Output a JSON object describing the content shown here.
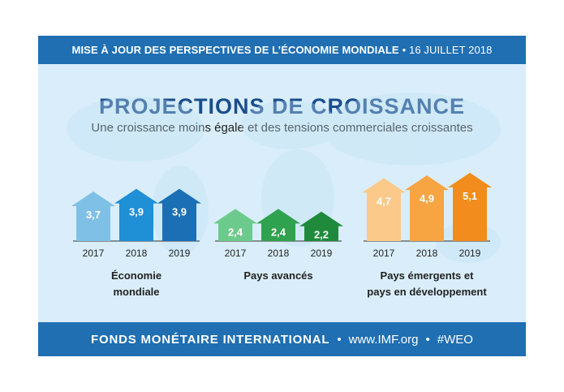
{
  "header": {
    "title": "MISE À JOUR DES PERSPECTIVES DE L’ÉCONOMIE MONDIALE",
    "date": "• 16 JUILLET 2018"
  },
  "main": {
    "title": "PROJECTIONS DE CROISSANCE",
    "subtitle": "Une croissance moins égale et des tensions commerciales croissantes"
  },
  "footer": {
    "org": "FONDS MONÉTAIRE INTERNATIONAL",
    "sep1": "•",
    "url": "www.IMF.org",
    "sep2": "•",
    "tag": "#WEO"
  },
  "colors": {
    "bar": "#1f6fb2",
    "background": "#d9eefa",
    "world": [
      "#7fc0e6",
      "#1f8fd6",
      "#1a6fb5"
    ],
    "advanced": [
      "#6ccb8c",
      "#2fa24f",
      "#1f8a3c"
    ],
    "emerging": [
      "#fbc98a",
      "#f7a443",
      "#f28c1c"
    ]
  },
  "chart_data": {
    "type": "bar",
    "categories": [
      "2017",
      "2018",
      "2019"
    ],
    "groups": [
      {
        "label_lines": [
          "Économie",
          "mondiale"
        ],
        "values": [
          3.7,
          3.9,
          3.9
        ],
        "value_labels": [
          "3,7",
          "3,9",
          "3,9"
        ],
        "palette": "world"
      },
      {
        "label_lines": [
          "Pays avancés"
        ],
        "values": [
          2.4,
          2.4,
          2.2
        ],
        "value_labels": [
          "2,4",
          "2,4",
          "2,2"
        ],
        "palette": "advanced"
      },
      {
        "label_lines": [
          "Pays émergents et",
          "pays en développement"
        ],
        "values": [
          4.7,
          4.9,
          5.1
        ],
        "value_labels": [
          "4,7",
          "4,9",
          "5,1"
        ],
        "palette": "emerging"
      }
    ],
    "grid": false,
    "legend": "none"
  }
}
